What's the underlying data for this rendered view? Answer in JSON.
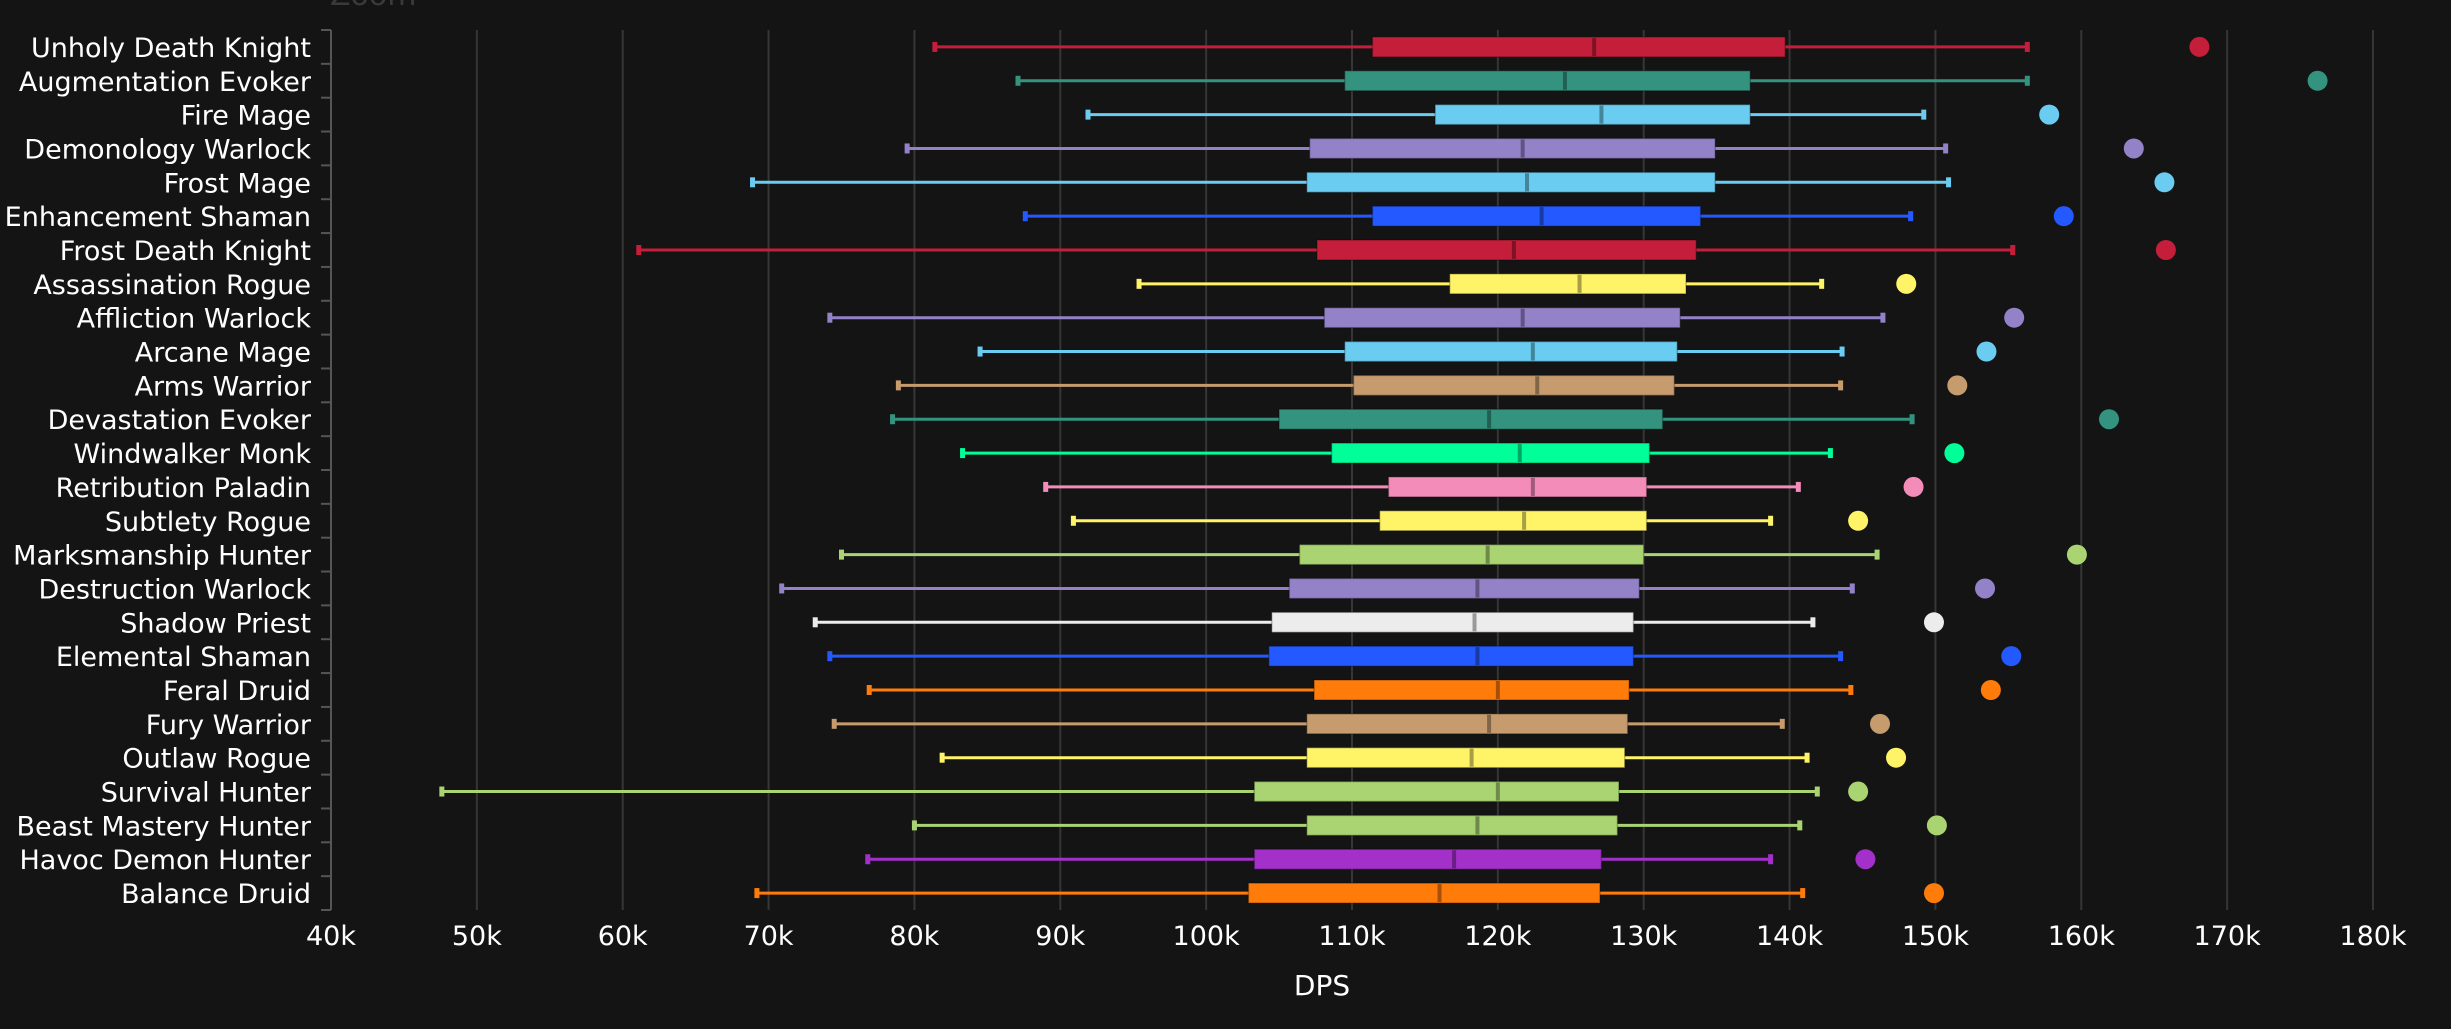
{
  "header": {
    "zoom_label": "Zoom"
  },
  "chart_data": {
    "type": "boxplot",
    "orientation": "horizontal",
    "xlabel": "DPS",
    "xlim": [
      40000,
      180000
    ],
    "xticks": [
      40000,
      50000,
      60000,
      70000,
      80000,
      90000,
      100000,
      110000,
      120000,
      130000,
      140000,
      150000,
      160000,
      170000,
      180000
    ],
    "xtick_labels": [
      "40k",
      "50k",
      "60k",
      "70k",
      "80k",
      "90k",
      "100k",
      "110k",
      "120k",
      "130k",
      "140k",
      "150k",
      "160k",
      "170k",
      "180k"
    ],
    "grid": "vertical",
    "legend": "none",
    "series": [
      {
        "name": "Unholy Death Knight",
        "color": "#C41E3A",
        "whisker_low": 81400,
        "q1": 111400,
        "median": 126600,
        "q3": 139700,
        "whisker_high": 156300,
        "outlier": 168100
      },
      {
        "name": "Augmentation Evoker",
        "color": "#33937F",
        "whisker_low": 87100,
        "q1": 109500,
        "median": 124600,
        "q3": 137300,
        "whisker_high": 156300,
        "outlier": 176200
      },
      {
        "name": "Fire Mage",
        "color": "#69CCF0",
        "whisker_low": 91900,
        "q1": 115700,
        "median": 127100,
        "q3": 137300,
        "whisker_high": 149200,
        "outlier": 157800
      },
      {
        "name": "Demonology Warlock",
        "color": "#9482C9",
        "whisker_low": 79500,
        "q1": 107100,
        "median": 121700,
        "q3": 134900,
        "whisker_high": 150700,
        "outlier": 163600
      },
      {
        "name": "Frost Mage",
        "color": "#69CCF0",
        "whisker_low": 68900,
        "q1": 106900,
        "median": 122000,
        "q3": 134900,
        "whisker_high": 150900,
        "outlier": 165700
      },
      {
        "name": "Enhancement Shaman",
        "color": "#2459FF",
        "whisker_low": 87600,
        "q1": 111400,
        "median": 123000,
        "q3": 133900,
        "whisker_high": 148300,
        "outlier": 158800
      },
      {
        "name": "Frost Death Knight",
        "color": "#C41E3A",
        "whisker_low": 61100,
        "q1": 107600,
        "median": 121100,
        "q3": 133600,
        "whisker_high": 155300,
        "outlier": 165800
      },
      {
        "name": "Assassination Rogue",
        "color": "#FFF468",
        "whisker_low": 95400,
        "q1": 116700,
        "median": 125600,
        "q3": 132900,
        "whisker_high": 142200,
        "outlier": 148000
      },
      {
        "name": "Affliction Warlock",
        "color": "#9482C9",
        "whisker_low": 74200,
        "q1": 108100,
        "median": 121700,
        "q3": 132500,
        "whisker_high": 146400,
        "outlier": 155400
      },
      {
        "name": "Arcane Mage",
        "color": "#69CCF0",
        "whisker_low": 84500,
        "q1": 109500,
        "median": 122400,
        "q3": 132300,
        "whisker_high": 143600,
        "outlier": 153500
      },
      {
        "name": "Arms Warrior",
        "color": "#C69B6D",
        "whisker_low": 78900,
        "q1": 110100,
        "median": 122700,
        "q3": 132100,
        "whisker_high": 143500,
        "outlier": 151500
      },
      {
        "name": "Devastation Evoker",
        "color": "#33937F",
        "whisker_low": 78500,
        "q1": 105000,
        "median": 119400,
        "q3": 131300,
        "whisker_high": 148400,
        "outlier": 161900
      },
      {
        "name": "Windwalker Monk",
        "color": "#00FF98",
        "whisker_low": 83300,
        "q1": 108600,
        "median": 121500,
        "q3": 130400,
        "whisker_high": 142800,
        "outlier": 151300
      },
      {
        "name": "Retribution Paladin",
        "color": "#F48CBA",
        "whisker_low": 89000,
        "q1": 112500,
        "median": 122400,
        "q3": 130200,
        "whisker_high": 140600,
        "outlier": 148500
      },
      {
        "name": "Subtlety Rogue",
        "color": "#FFF468",
        "whisker_low": 90900,
        "q1": 111900,
        "median": 121800,
        "q3": 130200,
        "whisker_high": 138700,
        "outlier": 144700
      },
      {
        "name": "Marksmanship Hunter",
        "color": "#AAD372",
        "whisker_low": 75000,
        "q1": 106400,
        "median": 119300,
        "q3": 130000,
        "whisker_high": 146000,
        "outlier": 159700
      },
      {
        "name": "Destruction Warlock",
        "color": "#9482C9",
        "whisker_low": 70900,
        "q1": 105700,
        "median": 118600,
        "q3": 129700,
        "whisker_high": 144300,
        "outlier": 153400
      },
      {
        "name": "Shadow Priest",
        "color": "#ECECEC",
        "whisker_low": 73200,
        "q1": 104500,
        "median": 118400,
        "q3": 129300,
        "whisker_high": 141600,
        "outlier": 149900
      },
      {
        "name": "Elemental Shaman",
        "color": "#2459FF",
        "whisker_low": 74200,
        "q1": 104300,
        "median": 118600,
        "q3": 129300,
        "whisker_high": 143500,
        "outlier": 155200
      },
      {
        "name": "Feral Druid",
        "color": "#FF7C0A",
        "whisker_low": 76900,
        "q1": 107400,
        "median": 120000,
        "q3": 129000,
        "whisker_high": 144200,
        "outlier": 153800
      },
      {
        "name": "Fury Warrior",
        "color": "#C69B6D",
        "whisker_low": 74500,
        "q1": 106900,
        "median": 119400,
        "q3": 128900,
        "whisker_high": 139500,
        "outlier": 146200
      },
      {
        "name": "Outlaw Rogue",
        "color": "#FFF468",
        "whisker_low": 81900,
        "q1": 106900,
        "median": 118200,
        "q3": 128700,
        "whisker_high": 141200,
        "outlier": 147300
      },
      {
        "name": "Survival Hunter",
        "color": "#AAD372",
        "whisker_low": 47600,
        "q1": 103300,
        "median": 120000,
        "q3": 128300,
        "whisker_high": 141900,
        "outlier": 144700
      },
      {
        "name": "Beast Mastery Hunter",
        "color": "#AAD372",
        "whisker_low": 80000,
        "q1": 106900,
        "median": 118600,
        "q3": 128200,
        "whisker_high": 140700,
        "outlier": 150100
      },
      {
        "name": "Havoc Demon Hunter",
        "color": "#A330C9",
        "whisker_low": 76800,
        "q1": 103300,
        "median": 117000,
        "q3": 127100,
        "whisker_high": 138700,
        "outlier": 145200
      },
      {
        "name": "Balance Druid",
        "color": "#FF7C0A",
        "whisker_low": 69200,
        "q1": 102900,
        "median": 116000,
        "q3": 127000,
        "whisker_high": 140900,
        "outlier": 149900
      }
    ]
  }
}
